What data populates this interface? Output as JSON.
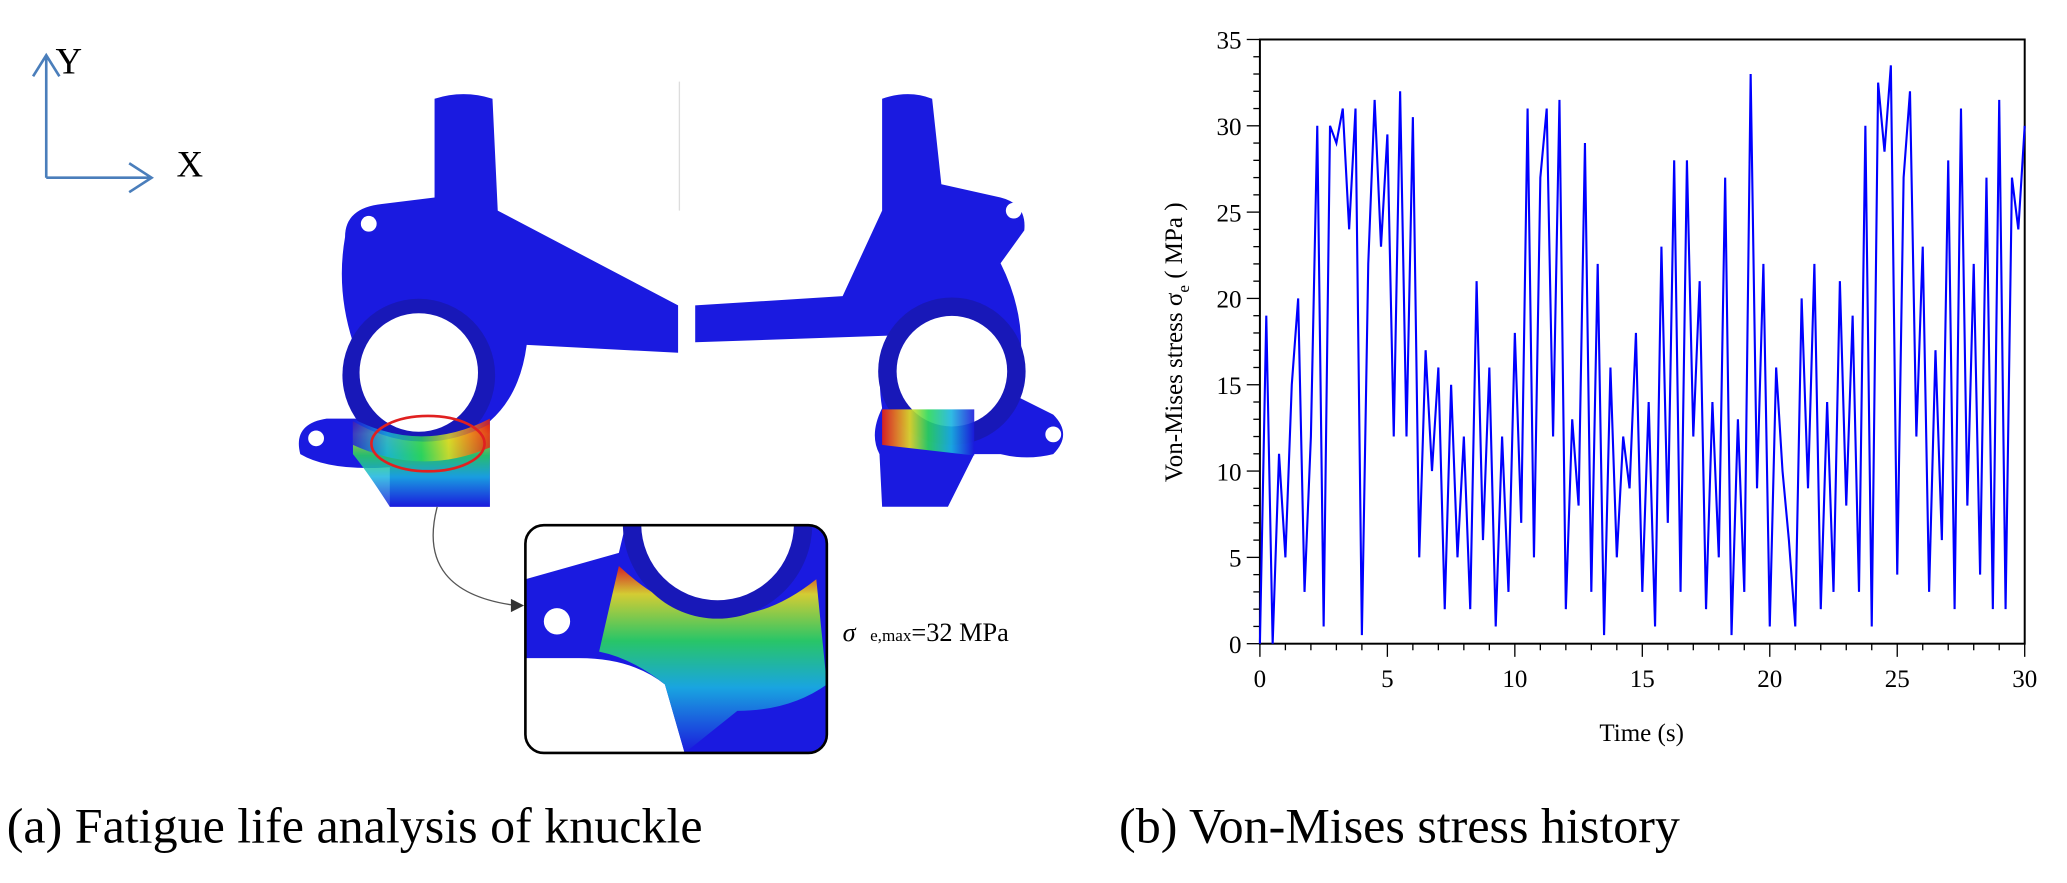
{
  "axes_triad": {
    "y_label": "Y",
    "x_label": "X"
  },
  "panel_a": {
    "caption": "(a) Fatigue life analysis of knuckle",
    "annotation_symbol": "σ",
    "annotation_subscript": "e,max",
    "annotation_value": "=32 MPa",
    "colors": {
      "low": "#1a1adc",
      "mid": "#22c85a",
      "high": "#e82010",
      "highlight_ellipse": "#e02020"
    }
  },
  "panel_b": {
    "caption": "(b) Von-Mises stress history"
  },
  "chart_data": {
    "type": "line",
    "title": "",
    "xlabel": "Time (s)",
    "ylabel_main": "Von-Mises stress σ",
    "ylabel_sub": "e",
    "ylabel_unit": " ( MPa )",
    "xlim": [
      0,
      30
    ],
    "ylim": [
      0,
      35
    ],
    "xticks": [
      "0",
      "5",
      "10",
      "15",
      "20",
      "25",
      "30"
    ],
    "yticks": [
      "0",
      "5",
      "10",
      "15",
      "20",
      "25",
      "30",
      "35"
    ],
    "grid": false,
    "series": [
      {
        "name": "Von-Mises stress",
        "color": "#0000ff",
        "x_step": 0.25,
        "values": [
          0,
          19,
          0,
          11,
          5,
          15,
          20,
          3,
          12,
          30,
          1,
          30,
          29,
          31,
          24,
          31,
          0.5,
          22,
          31.5,
          23,
          29.5,
          12,
          32,
          12,
          30.5,
          5,
          17,
          10,
          16,
          2,
          15,
          5,
          12,
          2,
          21,
          6,
          16,
          1,
          12,
          3,
          18,
          7,
          31,
          5,
          27,
          31,
          12,
          31.5,
          2,
          13,
          8,
          29,
          3,
          22,
          0.5,
          16,
          5,
          12,
          9,
          18,
          3,
          14,
          1,
          23,
          7,
          28,
          3,
          28,
          12,
          21,
          2,
          14,
          5,
          27,
          0.5,
          13,
          3,
          33,
          9,
          22,
          1,
          16,
          10,
          6,
          1,
          20,
          9,
          22,
          2,
          14,
          3,
          21,
          8,
          19,
          3,
          30,
          1,
          32.5,
          28.5,
          33.5,
          4,
          27,
          32,
          12,
          23,
          3,
          17,
          6,
          28,
          2,
          31,
          8,
          22,
          4,
          27,
          2,
          31.5,
          2,
          27,
          24,
          30
        ]
      }
    ]
  }
}
